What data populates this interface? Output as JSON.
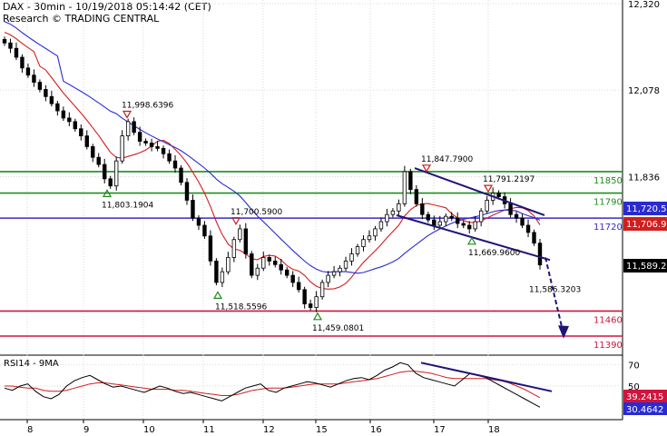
{
  "header": {
    "line1": "DAX - 30min - 10/19/2018 05:14:42 (CET)",
    "line2": "Research © TRADING CENTRAL"
  },
  "indicator": {
    "label": "RSI14 - 9MA"
  },
  "colors": {
    "candle": "#000000",
    "ma_fast": "#d21e1e",
    "ma_slow": "#2a2ad2",
    "resistance": "#1e8c1e",
    "support": "#d2143c",
    "pivot": "#3c28c8",
    "trend": "#1e1478",
    "marker_low": "#1e8c1e",
    "marker_high": "#c81e1e"
  },
  "chart_data": [
    {
      "type": "line",
      "title": "DAX - 30min",
      "y_ticks": [
        "12,320",
        "12,078",
        "11,836",
        "11,589.2"
      ],
      "x_ticks": [
        "8",
        "9",
        "10",
        "11",
        "12",
        "15",
        "16",
        "17",
        "18"
      ],
      "price_range": [
        11380,
        12320
      ],
      "last_price": "11,589.2",
      "levels": [
        {
          "label": "11850",
          "value": 11850,
          "kind": "resistance"
        },
        {
          "label": "11790",
          "value": 11790,
          "kind": "resistance"
        },
        {
          "label": "11720",
          "value": 11720,
          "kind": "pivot"
        },
        {
          "label": "11460",
          "value": 11460,
          "kind": "support"
        },
        {
          "label": "11390",
          "value": 11390,
          "kind": "support"
        }
      ],
      "price_tags": [
        {
          "label": "11,720.5",
          "value": 11720.5,
          "color": "#2a2ad2"
        },
        {
          "label": "11,706.9",
          "value": 11706.9,
          "color": "#d21e1e"
        },
        {
          "label": "11,589.2",
          "value": 11589.2,
          "color": "#000000"
        }
      ],
      "annotations": [
        {
          "text": "11,998.6396",
          "date": "10/09",
          "value": 11998.6396,
          "marker": "high"
        },
        {
          "text": "11,803.1904",
          "date": "10/09",
          "value": 11803.1904,
          "marker": "low"
        },
        {
          "text": "11,700.5900",
          "date": "10/11",
          "value": 11700.59,
          "marker": "high"
        },
        {
          "text": "11,518.5596",
          "date": "10/11",
          "value": 11518.5596,
          "marker": "low"
        },
        {
          "text": "11,459.0801",
          "date": "10/15",
          "value": 11459.0801,
          "marker": "low"
        },
        {
          "text": "11,847.7900",
          "date": "10/16",
          "value": 11847.79,
          "marker": "high"
        },
        {
          "text": "11,791.2197",
          "date": "10/18",
          "value": 11791.2197,
          "marker": "high"
        },
        {
          "text": "11,669.9600",
          "date": "10/17",
          "value": 11669.96,
          "marker": "low"
        },
        {
          "text": "11,586.3203",
          "date": "10/18",
          "value": 11586.3203,
          "marker": "none"
        }
      ],
      "close_series": [
        12210,
        12195,
        12170,
        12140,
        12120,
        12100,
        12080,
        12060,
        12040,
        12020,
        12000,
        11990,
        11970,
        11950,
        11920,
        11890,
        11870,
        11830,
        11810,
        11880,
        11950,
        11990,
        11960,
        11935,
        11930,
        11920,
        11915,
        11900,
        11880,
        11860,
        11820,
        11770,
        11720,
        11700,
        11670,
        11600,
        11540,
        11570,
        11610,
        11660,
        11690,
        11620,
        11560,
        11580,
        11610,
        11600,
        11590,
        11575,
        11560,
        11540,
        11520,
        11480,
        11470,
        11500,
        11540,
        11560,
        11570,
        11580,
        11600,
        11620,
        11640,
        11660,
        11670,
        11690,
        11710,
        11730,
        11740,
        11760,
        11850,
        11800,
        11760,
        11730,
        11715,
        11700,
        11710,
        11725,
        11720,
        11705,
        11700,
        11690,
        11710,
        11740,
        11770,
        11790,
        11780,
        11760,
        11730,
        11720,
        11700,
        11680,
        11650,
        11589
      ]
    },
    {
      "type": "line",
      "title": "RSI14 - 9MA",
      "y_ticks": [
        "70",
        "50"
      ],
      "last_values": [
        {
          "label": "39.2415",
          "value": 39.2415,
          "series": "ma"
        },
        {
          "label": "30.4642",
          "value": 30.4642,
          "series": "rsi"
        }
      ],
      "rsi_series": [
        48,
        46,
        50,
        52,
        45,
        40,
        38,
        42,
        50,
        55,
        58,
        60,
        56,
        52,
        49,
        50,
        48,
        46,
        44,
        47,
        50,
        48,
        45,
        43,
        44,
        42,
        40,
        38,
        36,
        40,
        44,
        48,
        50,
        52,
        46,
        44,
        48,
        50,
        52,
        54,
        53,
        51,
        49,
        52,
        55,
        57,
        58,
        56,
        60,
        65,
        68,
        72,
        70,
        62,
        58,
        56,
        54,
        52,
        50,
        56,
        62,
        60,
        58,
        54,
        50,
        46,
        42,
        38,
        34,
        30
      ],
      "ma_series": [
        50,
        50,
        49,
        48,
        48,
        46,
        45,
        45,
        46,
        48,
        50,
        52,
        53,
        53,
        52,
        51,
        50,
        49,
        48,
        47,
        47,
        47,
        46,
        46,
        45,
        44,
        43,
        42,
        41,
        41,
        42,
        44,
        46,
        47,
        48,
        48,
        48,
        49,
        50,
        51,
        52,
        52,
        52,
        52,
        53,
        54,
        55,
        56,
        57,
        59,
        61,
        63,
        64,
        64,
        63,
        62,
        60,
        58,
        57,
        57,
        57,
        57,
        57,
        56,
        55,
        53,
        50,
        47,
        43,
        39
      ]
    }
  ]
}
